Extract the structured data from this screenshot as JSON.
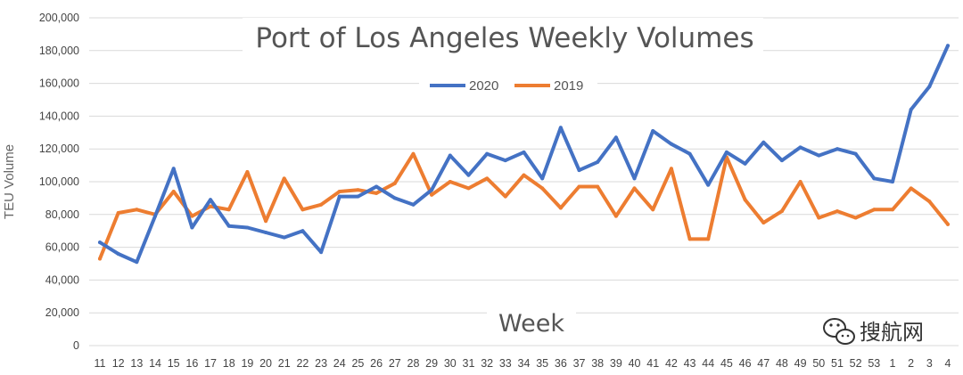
{
  "chart_data": {
    "type": "line",
    "title": "Port of Los Angeles Weekly Volumes",
    "xlabel": "Week",
    "ylabel": "TEU Volume",
    "ylim": [
      0,
      200000
    ],
    "y_ticks": [
      "0",
      "20,000",
      "40,000",
      "60,000",
      "80,000",
      "100,000",
      "120,000",
      "140,000",
      "160,000",
      "180,000",
      "200,000"
    ],
    "grid": true,
    "legend_position": "top-center",
    "categories": [
      "11",
      "12",
      "13",
      "14",
      "15",
      "16",
      "17",
      "18",
      "19",
      "20",
      "21",
      "22",
      "23",
      "24",
      "25",
      "26",
      "27",
      "28",
      "29",
      "30",
      "31",
      "32",
      "33",
      "34",
      "35",
      "36",
      "37",
      "38",
      "39",
      "40",
      "41",
      "42",
      "43",
      "44",
      "45",
      "46",
      "47",
      "48",
      "49",
      "50",
      "51",
      "52",
      "53",
      "1",
      "2",
      "3",
      "4"
    ],
    "series": [
      {
        "name": "2020",
        "color": "#4472C4",
        "values": [
          63000,
          56000,
          51000,
          79000,
          108000,
          72000,
          89000,
          73000,
          72000,
          69000,
          66000,
          70000,
          57000,
          91000,
          91000,
          97000,
          90000,
          86000,
          95000,
          116000,
          104000,
          117000,
          113000,
          118000,
          102000,
          133000,
          107000,
          112000,
          127000,
          102000,
          131000,
          123000,
          117000,
          98000,
          118000,
          111000,
          124000,
          113000,
          121000,
          116000,
          120000,
          117000,
          102000,
          100000,
          144000,
          158000,
          183000
        ]
      },
      {
        "name": "2019",
        "color": "#ED7D31",
        "values": [
          53000,
          81000,
          83000,
          80000,
          94000,
          79000,
          85000,
          83000,
          106000,
          76000,
          102000,
          83000,
          86000,
          94000,
          95000,
          93000,
          99000,
          117000,
          92000,
          100000,
          96000,
          102000,
          91000,
          104000,
          96000,
          84000,
          97000,
          97000,
          79000,
          96000,
          83000,
          108000,
          65000,
          65000,
          115000,
          89000,
          75000,
          82000,
          100000,
          78000,
          82000,
          78000,
          83000,
          83000,
          96000,
          88000,
          74000
        ]
      }
    ]
  },
  "watermark": {
    "text": "搜航网",
    "icon": "wechat-icon"
  }
}
